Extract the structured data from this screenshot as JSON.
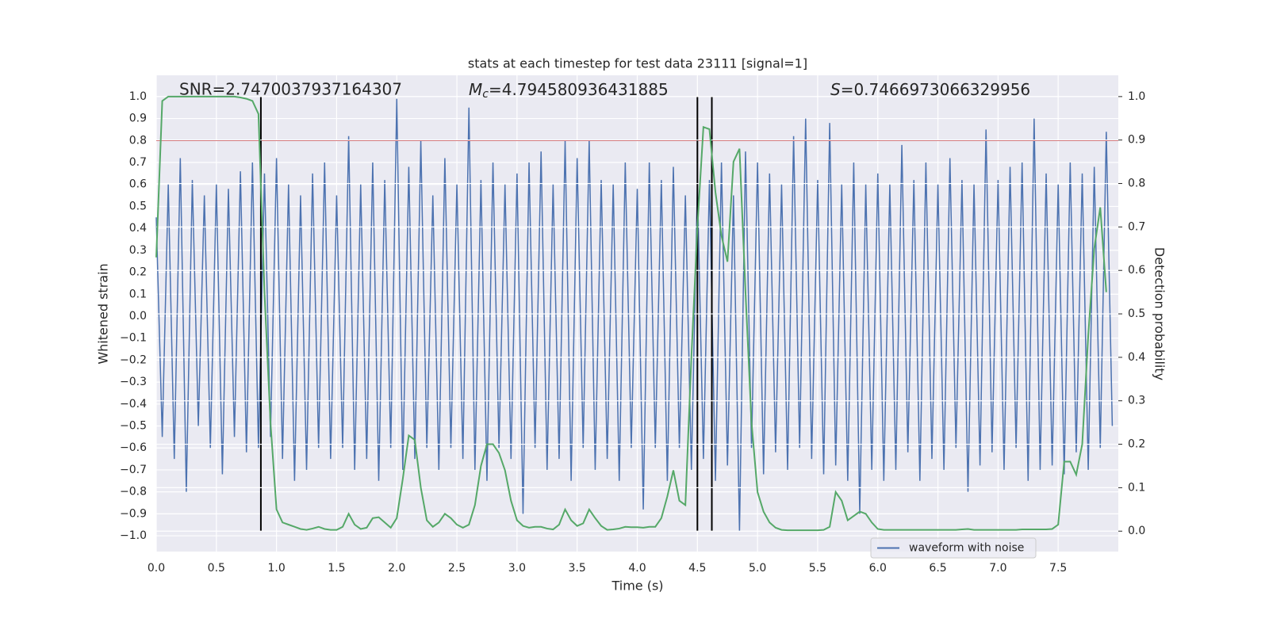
{
  "chart_data": {
    "type": "line",
    "title": "stats at each timestep for test data 23111 [signal=1]",
    "xlabel": "Time (s)",
    "ylabel": "Whitened strain",
    "y2label": "Detection probability",
    "annotations": {
      "snr": "SNR=2.7470037937164307",
      "mc_symbol": "M",
      "mc_sub": "c",
      "mc_text": "=4.794580936431885",
      "s_symbol": "S",
      "s_text": "=0.7466973066329956"
    },
    "xlim": [
      0,
      8
    ],
    "ylim": [
      -1.072,
      1.097
    ],
    "y2lim": [
      -0.047,
      1.049
    ],
    "xticks": [
      {
        "value": 0,
        "label": "0.0"
      },
      0.5,
      {
        "value": 1,
        "label": "1.0"
      },
      1.5,
      {
        "value": 2,
        "label": "2.0"
      },
      2.5,
      {
        "value": 3,
        "label": "3.0"
      },
      3.5,
      {
        "value": 4,
        "label": "4.0"
      },
      4.5,
      {
        "value": 5,
        "label": "5.0"
      },
      5.5,
      {
        "value": 6,
        "label": "6.0"
      },
      6.5,
      {
        "value": 7,
        "label": "7.0"
      },
      7.5
    ],
    "yticks": [
      {
        "value": -1,
        "label": "−1.0"
      },
      {
        "value": -0.9,
        "label": "−0.9"
      },
      {
        "value": -0.8,
        "label": "−0.8"
      },
      {
        "value": -0.7,
        "label": "−0.7"
      },
      {
        "value": -0.6,
        "label": "−0.6"
      },
      {
        "value": -0.5,
        "label": "−0.5"
      },
      {
        "value": -0.4,
        "label": "−0.4"
      },
      {
        "value": -0.3,
        "label": "−0.3"
      },
      {
        "value": -0.2,
        "label": "−0.2"
      },
      {
        "value": -0.1,
        "label": "−0.1"
      },
      {
        "value": 0,
        "label": "0.0"
      },
      0.1,
      0.2,
      0.3,
      0.4,
      0.5,
      0.6,
      0.7,
      0.8,
      0.9,
      {
        "value": 1,
        "label": "1.0"
      }
    ],
    "y2ticks": [
      {
        "value": 0,
        "label": "0.0"
      },
      0.1,
      0.2,
      0.3,
      0.4,
      0.5,
      0.6,
      0.7,
      0.8,
      0.9,
      {
        "value": 1,
        "label": "1.0"
      }
    ],
    "grid": true,
    "background": "#eaeaf2",
    "legend": "lower right",
    "hline": {
      "y": 0.8,
      "color": "#c44e52"
    },
    "vlines": {
      "x": [
        0.87,
        4.5,
        4.62
      ],
      "ymin": -0.98,
      "ymax": 1.0,
      "color": "#000000"
    },
    "x": [
      0,
      0.05,
      0.1,
      0.15,
      0.2,
      0.25,
      0.3,
      0.35,
      0.4,
      0.45,
      0.5,
      0.55,
      0.6,
      0.65,
      0.7,
      0.75,
      0.8,
      0.85,
      0.9,
      0.95,
      1,
      1.05,
      1.1,
      1.15,
      1.2,
      1.25,
      1.3,
      1.35,
      1.4,
      1.45,
      1.5,
      1.55,
      1.6,
      1.65,
      1.7,
      1.75,
      1.8,
      1.85,
      1.9,
      1.95,
      2,
      2.05,
      2.1,
      2.15,
      2.2,
      2.25,
      2.3,
      2.35,
      2.4,
      2.45,
      2.5,
      2.55,
      2.6,
      2.65,
      2.7,
      2.75,
      2.8,
      2.85,
      2.9,
      2.95,
      3,
      3.05,
      3.1,
      3.15,
      3.2,
      3.25,
      3.3,
      3.35,
      3.4,
      3.45,
      3.5,
      3.55,
      3.6,
      3.65,
      3.7,
      3.75,
      3.8,
      3.85,
      3.9,
      3.95,
      4,
      4.05,
      4.1,
      4.15,
      4.2,
      4.25,
      4.3,
      4.35,
      4.4,
      4.45,
      4.5,
      4.55,
      4.6,
      4.65,
      4.7,
      4.75,
      4.8,
      4.85,
      4.9,
      4.95,
      5,
      5.05,
      5.1,
      5.15,
      5.2,
      5.25,
      5.3,
      5.35,
      5.4,
      5.45,
      5.5,
      5.55,
      5.6,
      5.65,
      5.7,
      5.75,
      5.8,
      5.85,
      5.9,
      5.95,
      6,
      6.05,
      6.1,
      6.15,
      6.2,
      6.25,
      6.3,
      6.35,
      6.4,
      6.45,
      6.5,
      6.55,
      6.6,
      6.65,
      6.7,
      6.75,
      6.8,
      6.85,
      6.9,
      6.95,
      7,
      7.05,
      7.1,
      7.15,
      7.2,
      7.25,
      7.3,
      7.35,
      7.4,
      7.45,
      7.5,
      7.55,
      7.6,
      7.65,
      7.7,
      7.75,
      7.8,
      7.85,
      7.9,
      7.95
    ],
    "series": [
      {
        "name": "waveform with noise",
        "color": "#4c72b0",
        "axis": "y",
        "values": [
          0.45,
          -0.55,
          0.6,
          -0.65,
          0.72,
          -0.8,
          0.62,
          -0.5,
          0.55,
          -0.6,
          0.6,
          -0.72,
          0.58,
          -0.55,
          0.66,
          -0.62,
          0.7,
          -0.6,
          0.65,
          -0.55,
          0.72,
          -0.65,
          0.6,
          -0.75,
          0.55,
          -0.7,
          0.65,
          -0.6,
          0.7,
          -0.65,
          0.55,
          -0.6,
          0.82,
          -0.7,
          0.6,
          -0.65,
          0.7,
          -0.75,
          0.62,
          -0.6,
          0.99,
          -0.7,
          0.68,
          -0.65,
          0.8,
          -0.6,
          0.55,
          -0.7,
          0.72,
          -0.6,
          0.6,
          -0.65,
          0.95,
          -0.7,
          0.62,
          -0.75,
          0.7,
          -0.6,
          0.6,
          -0.65,
          0.65,
          -0.9,
          0.7,
          -0.6,
          0.75,
          -0.7,
          0.6,
          -0.65,
          0.8,
          -0.75,
          0.72,
          -0.6,
          0.8,
          -0.7,
          0.62,
          -0.65,
          0.6,
          -0.75,
          0.7,
          -0.6,
          0.58,
          -0.88,
          0.7,
          -0.6,
          0.62,
          -0.75,
          0.68,
          -0.6,
          0.55,
          -0.7,
          0.6,
          -0.65,
          0.62,
          -0.75,
          0.7,
          -0.68,
          0.55,
          -0.98,
          0.75,
          -0.6,
          0.7,
          -0.72,
          0.65,
          -0.62,
          0.6,
          -0.7,
          0.82,
          -0.6,
          0.9,
          -0.65,
          0.62,
          -0.72,
          0.88,
          -0.68,
          0.6,
          -0.75,
          0.7,
          -0.9,
          0.6,
          -0.7,
          0.65,
          -0.75,
          0.6,
          -0.7,
          0.78,
          -0.62,
          0.62,
          -0.75,
          0.7,
          -0.65,
          0.6,
          -0.7,
          0.72,
          -0.6,
          0.62,
          -0.8,
          0.6,
          -0.68,
          0.85,
          -0.62,
          0.62,
          -0.7,
          0.68,
          -0.6,
          0.7,
          -0.75,
          0.9,
          -0.7,
          0.65,
          -0.68,
          0.6,
          -0.72,
          0.7,
          -0.62,
          0.65,
          -0.7,
          0.68,
          -0.6,
          0.84,
          -0.5
        ]
      },
      {
        "color": "#55a868",
        "axis": "y2",
        "values": [
          0.63,
          0.99,
          1.0,
          1.0,
          1.0,
          1.0,
          1.0,
          1.0,
          1.0,
          1.0,
          1.0,
          1.0,
          1.0,
          1.0,
          0.998,
          0.995,
          0.99,
          0.96,
          0.55,
          0.25,
          0.05,
          0.02,
          0.015,
          0.01,
          0.005,
          0.003,
          0.006,
          0.01,
          0.005,
          0.003,
          0.003,
          0.01,
          0.04,
          0.015,
          0.005,
          0.008,
          0.03,
          0.032,
          0.02,
          0.008,
          0.03,
          0.12,
          0.22,
          0.21,
          0.1,
          0.025,
          0.01,
          0.02,
          0.04,
          0.03,
          0.015,
          0.008,
          0.015,
          0.06,
          0.15,
          0.2,
          0.2,
          0.18,
          0.14,
          0.07,
          0.025,
          0.012,
          0.008,
          0.01,
          0.01,
          0.006,
          0.004,
          0.015,
          0.05,
          0.025,
          0.012,
          0.018,
          0.05,
          0.03,
          0.012,
          0.003,
          0.004,
          0.006,
          0.01,
          0.009,
          0.009,
          0.008,
          0.01,
          0.01,
          0.03,
          0.08,
          0.14,
          0.07,
          0.06,
          0.4,
          0.7,
          0.93,
          0.925,
          0.78,
          0.68,
          0.62,
          0.85,
          0.88,
          0.55,
          0.25,
          0.09,
          0.045,
          0.02,
          0.008,
          0.003,
          0.002,
          0.002,
          0.002,
          0.002,
          0.002,
          0.002,
          0.003,
          0.01,
          0.09,
          0.07,
          0.025,
          0.035,
          0.045,
          0.04,
          0.02,
          0.005,
          0.003,
          0.003,
          0.003,
          0.003,
          0.003,
          0.003,
          0.003,
          0.003,
          0.003,
          0.003,
          0.003,
          0.003,
          0.003,
          0.004,
          0.005,
          0.003,
          0.003,
          0.003,
          0.003,
          0.003,
          0.003,
          0.003,
          0.003,
          0.004,
          0.004,
          0.004,
          0.004,
          0.004,
          0.005,
          0.015,
          0.16,
          0.16,
          0.13,
          0.2,
          0.45,
          0.65,
          0.745,
          0.55,
          null
        ]
      }
    ]
  }
}
